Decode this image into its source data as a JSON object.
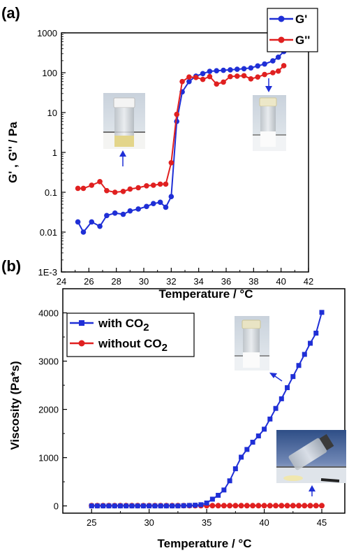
{
  "chart_data": [
    {
      "type": "line",
      "panel_label": "(a)",
      "xlabel": "Temperature / °C",
      "ylabel": "G' , G'' / Pa",
      "xlim": [
        24,
        42
      ],
      "ylim": [
        0.001,
        1000
      ],
      "y_scale": "log",
      "x_ticks": [
        "24",
        "26",
        "28",
        "30",
        "32",
        "34",
        "36",
        "38",
        "40",
        "42"
      ],
      "y_ticks": [
        "1E-3",
        "0.01",
        "0.1",
        "1",
        "10",
        "100",
        "1000"
      ],
      "legend_position": "top-right",
      "series": [
        {
          "name": "G'",
          "color": "#1f2fd6",
          "x": [
            25.2,
            25.6,
            26.2,
            26.8,
            27.3,
            27.9,
            28.5,
            29.0,
            29.6,
            30.2,
            30.7,
            31.2,
            31.6,
            32.0,
            32.4,
            32.8,
            33.3,
            33.8,
            34.3,
            34.8,
            35.3,
            35.8,
            36.3,
            36.8,
            37.3,
            37.8,
            38.3,
            38.8,
            39.4,
            39.8,
            40.2
          ],
          "values": [
            0.018,
            0.01,
            0.018,
            0.014,
            0.026,
            0.03,
            0.028,
            0.034,
            0.038,
            0.044,
            0.052,
            0.056,
            0.042,
            0.078,
            6.0,
            33,
            60,
            82,
            95,
            108,
            112,
            115,
            118,
            122,
            126,
            132,
            148,
            165,
            198,
            245,
            340
          ]
        },
        {
          "name": "G''",
          "color": "#e02020",
          "x": [
            25.2,
            25.6,
            26.2,
            26.8,
            27.3,
            27.9,
            28.5,
            29.0,
            29.6,
            30.2,
            30.7,
            31.2,
            31.6,
            32.0,
            32.4,
            32.8,
            33.3,
            33.8,
            34.3,
            34.8,
            35.3,
            35.8,
            36.3,
            36.8,
            37.3,
            37.8,
            38.3,
            38.8,
            39.4,
            39.8,
            40.2
          ],
          "values": [
            0.125,
            0.125,
            0.15,
            0.185,
            0.11,
            0.1,
            0.105,
            0.12,
            0.13,
            0.145,
            0.15,
            0.16,
            0.16,
            0.55,
            9.0,
            60,
            78,
            76,
            68,
            80,
            52,
            58,
            80,
            82,
            84,
            70,
            78,
            90,
            100,
            110,
            150
          ]
        }
      ]
    },
    {
      "type": "line",
      "panel_label": "(b)",
      "xlabel": "Temperature / °C",
      "ylabel": "Viscosity (Pa*s)",
      "xlim": [
        22.5,
        47
      ],
      "ylim": [
        -150,
        4500
      ],
      "x_ticks": [
        "25",
        "30",
        "35",
        "40",
        "45"
      ],
      "y_ticks": [
        "0",
        "1000",
        "2000",
        "3000",
        "4000"
      ],
      "legend_position": "top-left",
      "series": [
        {
          "name": "with CO2",
          "name_base": "with CO",
          "name_sub": "2",
          "color": "#1f2fd6",
          "x": [
            25.0,
            25.5,
            26.0,
            26.5,
            27.0,
            27.5,
            28.0,
            28.5,
            29.0,
            29.5,
            30.0,
            30.5,
            31.0,
            31.5,
            32.0,
            32.5,
            33.0,
            33.5,
            34.0,
            34.5,
            35.0,
            35.5,
            36.0,
            36.5,
            37.0,
            37.5,
            38.0,
            38.5,
            39.0,
            39.5,
            40.0,
            40.5,
            41.0,
            41.5,
            42.0,
            42.5,
            43.0,
            43.5,
            44.0,
            44.5,
            45.0
          ],
          "values": [
            0,
            0,
            0,
            0,
            0,
            0,
            0,
            0,
            0,
            0,
            0,
            0,
            0,
            0,
            0,
            0,
            5,
            10,
            15,
            25,
            60,
            140,
            220,
            330,
            520,
            770,
            1010,
            1170,
            1320,
            1450,
            1590,
            1800,
            2020,
            2220,
            2450,
            2680,
            2910,
            3140,
            3370,
            3580,
            4010
          ]
        },
        {
          "name": "without CO2",
          "name_base": "without CO",
          "name_sub": "2",
          "color": "#e02020",
          "x": [
            25.0,
            25.5,
            26.0,
            26.5,
            27.0,
            27.5,
            28.0,
            28.5,
            29.0,
            29.5,
            30.0,
            30.5,
            31.0,
            31.5,
            32.0,
            32.5,
            33.0,
            33.5,
            34.0,
            34.5,
            35.0,
            35.5,
            36.0,
            36.5,
            37.0,
            37.5,
            38.0,
            38.5,
            39.0,
            39.5,
            40.0,
            40.5,
            41.0,
            41.5,
            42.0,
            42.5,
            43.0,
            43.5,
            44.0,
            44.5,
            45.0
          ],
          "values": [
            5,
            5,
            5,
            5,
            5,
            5,
            5,
            5,
            5,
            5,
            5,
            5,
            5,
            5,
            5,
            5,
            5,
            5,
            5,
            5,
            5,
            5,
            5,
            5,
            5,
            5,
            5,
            5,
            5,
            5,
            5,
            5,
            5,
            5,
            5,
            5,
            5,
            5,
            5,
            5,
            5
          ]
        }
      ]
    }
  ]
}
